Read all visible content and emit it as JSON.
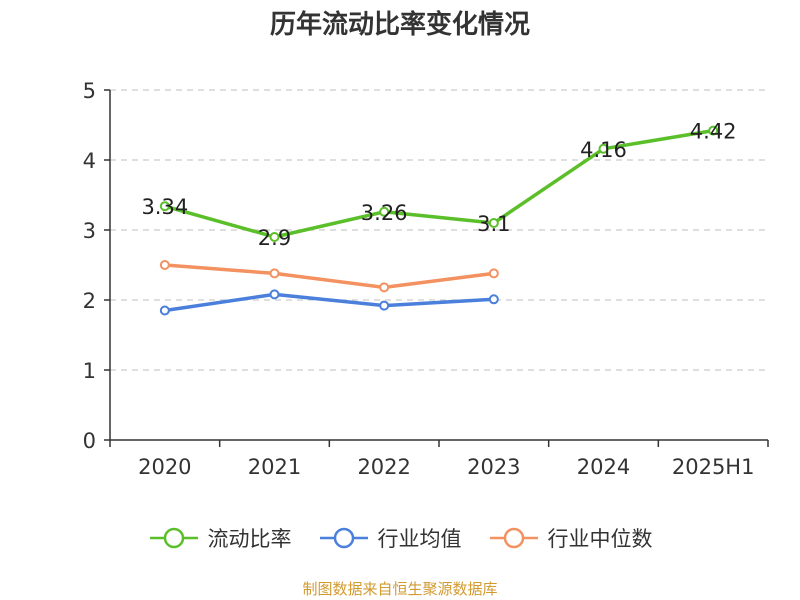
{
  "chart_data": {
    "type": "line",
    "title": "历年流动比率变化情况",
    "categories": [
      "2020",
      "2021",
      "2022",
      "2023",
      "2024",
      "2025H1"
    ],
    "ylim": [
      0,
      5
    ],
    "yticks": [
      0,
      1,
      2,
      3,
      4,
      5
    ],
    "grid": true,
    "legend_position": "bottom",
    "series": [
      {
        "name": "流动比率",
        "color": "#5bbf2a",
        "values": [
          3.34,
          2.9,
          3.26,
          3.1,
          4.16,
          4.42
        ],
        "labels": [
          "3.34",
          "2.9",
          "3.26",
          "3.1",
          "4.16",
          "4.42"
        ]
      },
      {
        "name": "行业均值",
        "color": "#4a7fdc",
        "values": [
          1.85,
          2.08,
          1.92,
          2.01,
          null,
          null
        ]
      },
      {
        "name": "行业中位数",
        "color": "#f39160",
        "values": [
          2.5,
          2.38,
          2.18,
          2.38,
          null,
          null
        ]
      }
    ],
    "source": "制图数据来自恒生聚源数据库"
  }
}
